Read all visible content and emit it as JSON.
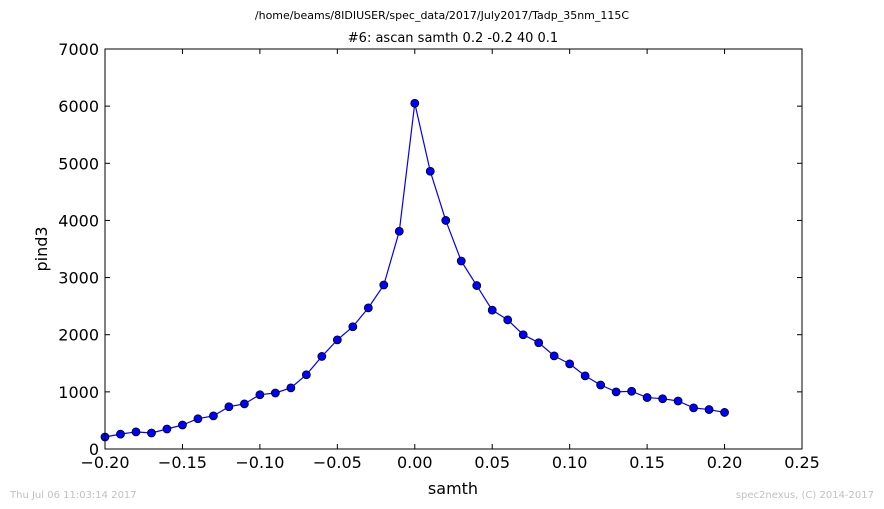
{
  "chart_data": {
    "type": "line",
    "suptitle": "/home/beams/8IDIUSER/spec_data/2017/July2017/Tadp_35nm_115C",
    "title": "#6: ascan  samth 0.2 -0.2  40 0.1",
    "xlabel": "samth",
    "ylabel": "pind3",
    "xlim": [
      -0.2,
      0.25
    ],
    "ylim": [
      0,
      7000
    ],
    "xticks": [
      -0.2,
      -0.15,
      -0.1,
      -0.05,
      0.0,
      0.05,
      0.1,
      0.15,
      0.2,
      0.25
    ],
    "xtick_labels": [
      "−0.20",
      "−0.15",
      "−0.10",
      "−0.05",
      "0.00",
      "0.05",
      "0.10",
      "0.15",
      "0.20",
      "0.25"
    ],
    "yticks": [
      0,
      1000,
      2000,
      3000,
      4000,
      5000,
      6000,
      7000
    ],
    "ytick_labels": [
      "0",
      "1000",
      "2000",
      "3000",
      "4000",
      "5000",
      "6000",
      "7000"
    ],
    "grid": false,
    "series": [
      {
        "color": "#0000ff",
        "marker": "circle",
        "x": [
          -0.2,
          -0.19,
          -0.18,
          -0.17,
          -0.16,
          -0.15,
          -0.14,
          -0.13,
          -0.12,
          -0.11,
          -0.1,
          -0.09,
          -0.08,
          -0.07,
          -0.06,
          -0.05,
          -0.04,
          -0.03,
          -0.02,
          -0.01,
          0.0,
          0.01,
          0.02,
          0.03,
          0.04,
          0.05,
          0.06,
          0.07,
          0.08,
          0.09,
          0.1,
          0.11,
          0.12,
          0.13,
          0.14,
          0.15,
          0.16,
          0.17,
          0.18,
          0.19,
          0.2
        ],
        "y": [
          210,
          260,
          300,
          280,
          350,
          420,
          530,
          580,
          740,
          790,
          950,
          980,
          1070,
          1300,
          1620,
          1910,
          2140,
          2470,
          2870,
          3810,
          6050,
          4860,
          4000,
          3290,
          2860,
          2430,
          2260,
          2000,
          1860,
          1630,
          1490,
          1280,
          1120,
          1000,
          1010,
          900,
          880,
          840,
          720,
          690,
          640
        ]
      }
    ]
  },
  "footer": {
    "timestamp": "Thu Jul 06 11:03:14 2017",
    "credit": "spec2nexus, (C) 2014-2017"
  }
}
